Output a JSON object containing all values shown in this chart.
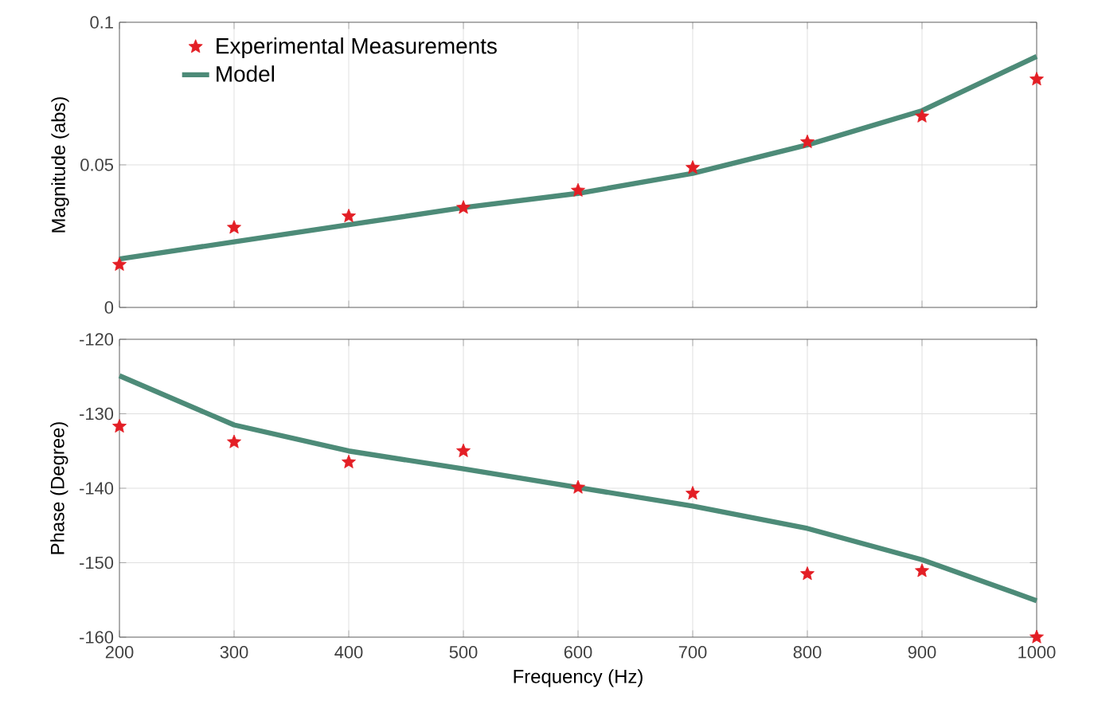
{
  "chart_data": [
    {
      "type": "line",
      "ylabel": "Magnitude (abs)",
      "x": [
        200,
        300,
        400,
        500,
        600,
        700,
        800,
        900,
        1000
      ],
      "xlim": [
        200,
        1000
      ],
      "xticks": [
        200,
        300,
        400,
        500,
        600,
        700,
        800,
        900,
        1000
      ],
      "ylim": [
        0,
        0.1
      ],
      "yticks": [
        0,
        0.05,
        0.1
      ],
      "grid": true,
      "legend": "top left",
      "tick_labels": "y",
      "series": [
        {
          "name": "Experimental Measurements",
          "type": "scatter",
          "marker": "star",
          "color": "#e31e25",
          "values": [
            0.015,
            0.028,
            0.032,
            0.035,
            0.041,
            0.049,
            0.058,
            0.067,
            0.08
          ]
        },
        {
          "name": "Model",
          "type": "line",
          "color": "#4d8b78",
          "values": [
            0.017,
            0.023,
            0.029,
            0.035,
            0.04,
            0.047,
            0.057,
            0.069,
            0.088
          ]
        }
      ]
    },
    {
      "type": "line",
      "xlabel": "Frequency  (Hz)",
      "ylabel": "Phase (Degree)",
      "x": [
        200,
        300,
        400,
        500,
        600,
        700,
        800,
        900,
        1000
      ],
      "xlim": [
        200,
        1000
      ],
      "xticks": [
        200,
        300,
        400,
        500,
        600,
        700,
        800,
        900,
        1000
      ],
      "ylim": [
        -160,
        -120
      ],
      "yticks": [
        -160,
        -150,
        -140,
        -130,
        -120
      ],
      "grid": true,
      "series": [
        {
          "type": "scatter",
          "marker": "star",
          "color": "#e31e25",
          "values": [
            -131.7,
            -133.8,
            -136.5,
            -135.0,
            -139.9,
            -140.7,
            -151.5,
            -151.1,
            -160.0
          ]
        },
        {
          "type": "line",
          "color": "#4d8b78",
          "values": [
            -124.9,
            -131.5,
            -135.0,
            -137.4,
            -139.9,
            -142.4,
            -145.4,
            -149.6,
            -155.1
          ]
        }
      ]
    }
  ]
}
